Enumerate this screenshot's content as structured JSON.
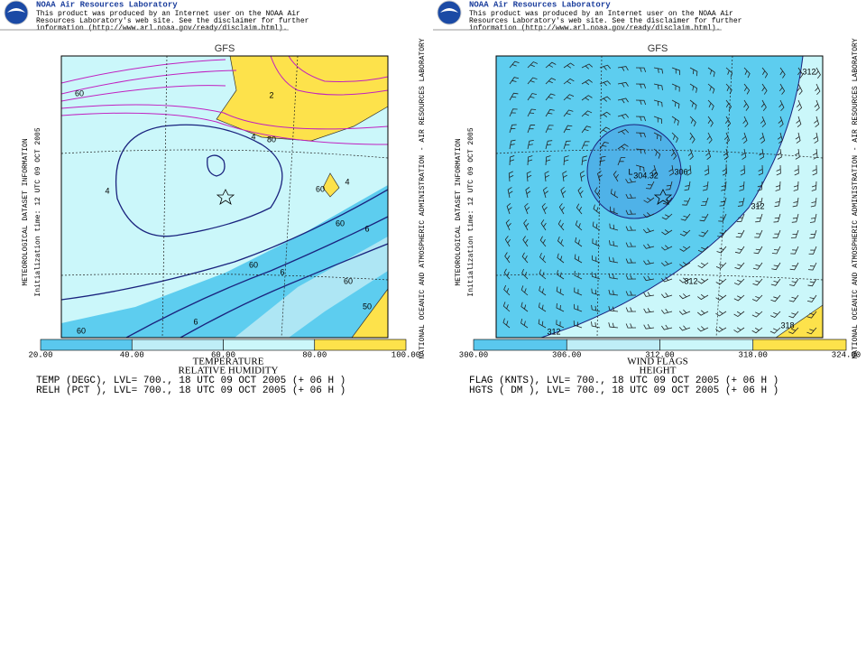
{
  "panels": [
    {
      "header": {
        "title": "NOAA Air Resources Laboratory",
        "disclaimer": [
          "This product was produced by an Internet user on the NOAA Air",
          "Resources Laboratory's web site.  See the disclaimer for further",
          "information (http://www.arl.noaa.gov/ready/disclaim.html)."
        ]
      },
      "model": "GFS",
      "side_left": [
        "METEOROLOGICAL DATASET INFORMATION",
        "Initialization time: 12 UTC 09 OCT 2005"
      ],
      "side_right": "NATIONAL OCEANIC AND ATMOSPHERIC ADMINISTRATION - AIR RESOURCES LABORATORY",
      "map_labels": [
        "60",
        "2",
        "4",
        "80",
        "4",
        "60",
        "4",
        "60",
        "6",
        "60",
        "6",
        "60",
        "50",
        "6",
        "60"
      ],
      "colorbar": [
        "20.00",
        "40.00",
        "60.00",
        "80.00",
        "100.00"
      ],
      "titles": [
        "TEMPERATURE",
        "RELATIVE HUMIDITY"
      ],
      "legend": [
        "TEMP (DEGC),  LVL= 700., 18 UTC 09 OCT 2005 (+ 06 H )",
        "RELH (PCT ),  LVL= 700., 18 UTC 09 OCT 2005 (+ 06 H )"
      ]
    },
    {
      "header": {
        "title": "NOAA Air Resources Laboratory",
        "disclaimer": [
          "This product was produced by an Internet user on the NOAA Air",
          "Resources Laboratory's web site.  See the disclaimer for further",
          "information (http://www.arl.noaa.gov/ready/disclaim.html)."
        ]
      },
      "model": "GFS",
      "side_left": [
        "METEOROLOGICAL DATASET INFORMATION",
        "Initialization time: 12 UTC 09 OCT 2005"
      ],
      "side_right": "NATIONAL OCEANIC AND ATMOSPHERIC ADMINISTRATION - AIR RESOURCES LABORATORY",
      "map_labels": [
        "312",
        "L",
        "304.32",
        "306",
        "312",
        "312",
        "318",
        "312"
      ],
      "colorbar": [
        "300.00",
        "306.00",
        "312.00",
        "318.00",
        "324.00"
      ],
      "titles": [
        "WIND FLAGS",
        "HEIGHT"
      ],
      "legend": [
        "FLAG (KNTS),  LVL= 700., 18 UTC 09 OCT 2005 (+ 06 H )",
        "HGTS ( DM ),  LVL= 700., 18 UTC 09 OCT 2005 (+ 06 H )"
      ]
    }
  ]
}
